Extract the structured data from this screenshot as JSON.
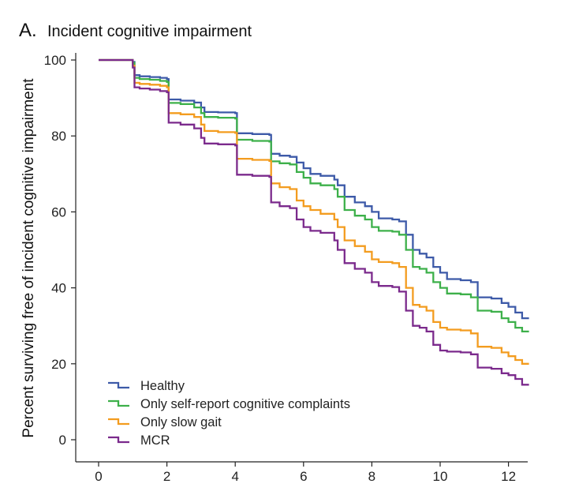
{
  "chart_data": {
    "type": "line",
    "step": true,
    "panel_label": "A.",
    "title": "Incident cognitive impairment",
    "xlabel": "",
    "ylabel": "Percent surviving free of incident cognitive impairment",
    "xlim": [
      0,
      12.6
    ],
    "ylim": [
      0,
      100
    ],
    "x_ticks": [
      0,
      2,
      4,
      6,
      8,
      10,
      12
    ],
    "y_ticks": [
      0,
      20,
      40,
      60,
      80,
      100
    ],
    "grid": false,
    "legend_position": "bottom-left",
    "series": [
      {
        "name": "Healthy",
        "color": "#3d5aa8",
        "points": [
          [
            0,
            100
          ],
          [
            0.8,
            100
          ],
          [
            1.0,
            99.5
          ],
          [
            1.05,
            96
          ],
          [
            1.2,
            95.7
          ],
          [
            1.5,
            95.5
          ],
          [
            1.8,
            95.3
          ],
          [
            2.0,
            95
          ],
          [
            2.05,
            89.6
          ],
          [
            2.4,
            89.3
          ],
          [
            2.8,
            88.8
          ],
          [
            3.0,
            87.5
          ],
          [
            3.1,
            86.3
          ],
          [
            3.5,
            86.2
          ],
          [
            4.0,
            86
          ],
          [
            4.05,
            80.7
          ],
          [
            4.5,
            80.5
          ],
          [
            5.0,
            80.3
          ],
          [
            5.05,
            75.3
          ],
          [
            5.3,
            74.8
          ],
          [
            5.6,
            74.5
          ],
          [
            5.8,
            73
          ],
          [
            6.0,
            71.5
          ],
          [
            6.2,
            70
          ],
          [
            6.5,
            69.5
          ],
          [
            6.9,
            68.5
          ],
          [
            7.0,
            67
          ],
          [
            7.2,
            64
          ],
          [
            7.5,
            62.5
          ],
          [
            7.8,
            61.5
          ],
          [
            8.0,
            60
          ],
          [
            8.2,
            58.3
          ],
          [
            8.6,
            58
          ],
          [
            8.8,
            57.5
          ],
          [
            9.0,
            54
          ],
          [
            9.2,
            50
          ],
          [
            9.4,
            49
          ],
          [
            9.6,
            48
          ],
          [
            9.8,
            45.5
          ],
          [
            10.0,
            44
          ],
          [
            10.2,
            42.3
          ],
          [
            10.6,
            42
          ],
          [
            10.9,
            41.5
          ],
          [
            11.1,
            37.5
          ],
          [
            11.5,
            37.2
          ],
          [
            11.8,
            36
          ],
          [
            12.0,
            35
          ],
          [
            12.2,
            33.5
          ],
          [
            12.4,
            32
          ],
          [
            12.6,
            32
          ]
        ]
      },
      {
        "name": "Only self-report cognitive complaints",
        "color": "#3db04a",
        "points": [
          [
            0,
            100
          ],
          [
            0.8,
            100
          ],
          [
            1.0,
            99.3
          ],
          [
            1.05,
            95.3
          ],
          [
            1.2,
            95
          ],
          [
            1.5,
            94.8
          ],
          [
            1.8,
            94.5
          ],
          [
            2.0,
            94.2
          ],
          [
            2.05,
            88.7
          ],
          [
            2.4,
            88.4
          ],
          [
            2.8,
            87.5
          ],
          [
            3.0,
            86
          ],
          [
            3.1,
            85
          ],
          [
            3.5,
            84.8
          ],
          [
            4.0,
            84.6
          ],
          [
            4.05,
            79
          ],
          [
            4.5,
            78.7
          ],
          [
            5.0,
            78.5
          ],
          [
            5.05,
            73.3
          ],
          [
            5.3,
            72.8
          ],
          [
            5.6,
            72.5
          ],
          [
            5.8,
            70.5
          ],
          [
            6.0,
            69
          ],
          [
            6.2,
            67.5
          ],
          [
            6.5,
            67
          ],
          [
            6.9,
            66
          ],
          [
            7.0,
            64
          ],
          [
            7.2,
            60.5
          ],
          [
            7.5,
            59
          ],
          [
            7.8,
            58
          ],
          [
            8.0,
            56
          ],
          [
            8.2,
            55
          ],
          [
            8.6,
            54.8
          ],
          [
            8.8,
            54
          ],
          [
            9.0,
            50
          ],
          [
            9.2,
            45.5
          ],
          [
            9.4,
            45
          ],
          [
            9.6,
            44
          ],
          [
            9.8,
            41.5
          ],
          [
            10.0,
            40
          ],
          [
            10.2,
            38.5
          ],
          [
            10.6,
            38.3
          ],
          [
            10.9,
            37.5
          ],
          [
            11.1,
            34
          ],
          [
            11.5,
            33.7
          ],
          [
            11.8,
            32
          ],
          [
            12.0,
            31
          ],
          [
            12.2,
            29.5
          ],
          [
            12.4,
            28.5
          ],
          [
            12.6,
            28.5
          ]
        ]
      },
      {
        "name": "Only slow gait",
        "color": "#f39c1f",
        "points": [
          [
            0,
            100
          ],
          [
            0.8,
            100
          ],
          [
            1.0,
            98.5
          ],
          [
            1.05,
            94
          ],
          [
            1.2,
            93.7
          ],
          [
            1.5,
            93.5
          ],
          [
            1.8,
            93.2
          ],
          [
            2.0,
            92.8
          ],
          [
            2.05,
            86
          ],
          [
            2.4,
            85.7
          ],
          [
            2.8,
            85
          ],
          [
            3.0,
            83
          ],
          [
            3.1,
            81.3
          ],
          [
            3.5,
            81
          ],
          [
            4.0,
            80.8
          ],
          [
            4.05,
            74
          ],
          [
            4.5,
            73.7
          ],
          [
            5.0,
            73.4
          ],
          [
            5.05,
            67.5
          ],
          [
            5.3,
            66.5
          ],
          [
            5.6,
            66
          ],
          [
            5.8,
            63
          ],
          [
            6.0,
            61.5
          ],
          [
            6.2,
            60.5
          ],
          [
            6.5,
            59.5
          ],
          [
            6.9,
            58
          ],
          [
            7.0,
            56
          ],
          [
            7.2,
            52.5
          ],
          [
            7.5,
            51
          ],
          [
            7.8,
            49.5
          ],
          [
            8.0,
            47.5
          ],
          [
            8.2,
            46.8
          ],
          [
            8.6,
            46.5
          ],
          [
            8.8,
            45.5
          ],
          [
            9.0,
            40
          ],
          [
            9.2,
            35.5
          ],
          [
            9.4,
            35
          ],
          [
            9.6,
            34
          ],
          [
            9.8,
            31
          ],
          [
            10.0,
            29.5
          ],
          [
            10.2,
            29
          ],
          [
            10.6,
            28.8
          ],
          [
            10.9,
            28
          ],
          [
            11.1,
            24.5
          ],
          [
            11.5,
            24.2
          ],
          [
            11.8,
            23
          ],
          [
            12.0,
            22
          ],
          [
            12.2,
            21
          ],
          [
            12.4,
            20
          ],
          [
            12.6,
            20
          ]
        ]
      },
      {
        "name": "MCR",
        "color": "#7b2a8c",
        "points": [
          [
            0,
            100
          ],
          [
            0.8,
            100
          ],
          [
            1.0,
            98
          ],
          [
            1.05,
            92.8
          ],
          [
            1.2,
            92.5
          ],
          [
            1.5,
            92.2
          ],
          [
            1.8,
            91.8
          ],
          [
            2.0,
            91.5
          ],
          [
            2.05,
            83.5
          ],
          [
            2.4,
            83
          ],
          [
            2.8,
            82
          ],
          [
            3.0,
            79.5
          ],
          [
            3.1,
            78
          ],
          [
            3.5,
            77.8
          ],
          [
            4.0,
            77.5
          ],
          [
            4.05,
            69.8
          ],
          [
            4.5,
            69.5
          ],
          [
            5.0,
            69.2
          ],
          [
            5.05,
            62.5
          ],
          [
            5.3,
            61.5
          ],
          [
            5.6,
            61
          ],
          [
            5.8,
            58
          ],
          [
            6.0,
            56
          ],
          [
            6.2,
            55
          ],
          [
            6.5,
            54.5
          ],
          [
            6.9,
            52.5
          ],
          [
            7.0,
            50
          ],
          [
            7.2,
            46.5
          ],
          [
            7.5,
            45
          ],
          [
            7.8,
            44
          ],
          [
            8.0,
            41.5
          ],
          [
            8.2,
            40.5
          ],
          [
            8.6,
            40.2
          ],
          [
            8.8,
            39
          ],
          [
            9.0,
            34
          ],
          [
            9.2,
            30
          ],
          [
            9.4,
            29.5
          ],
          [
            9.6,
            28.5
          ],
          [
            9.8,
            25
          ],
          [
            10.0,
            23.5
          ],
          [
            10.2,
            23.2
          ],
          [
            10.6,
            23
          ],
          [
            10.9,
            22.5
          ],
          [
            11.1,
            19
          ],
          [
            11.5,
            18.7
          ],
          [
            11.8,
            17.5
          ],
          [
            12.0,
            17
          ],
          [
            12.2,
            16
          ],
          [
            12.4,
            14.5
          ],
          [
            12.6,
            14.5
          ]
        ]
      }
    ]
  }
}
